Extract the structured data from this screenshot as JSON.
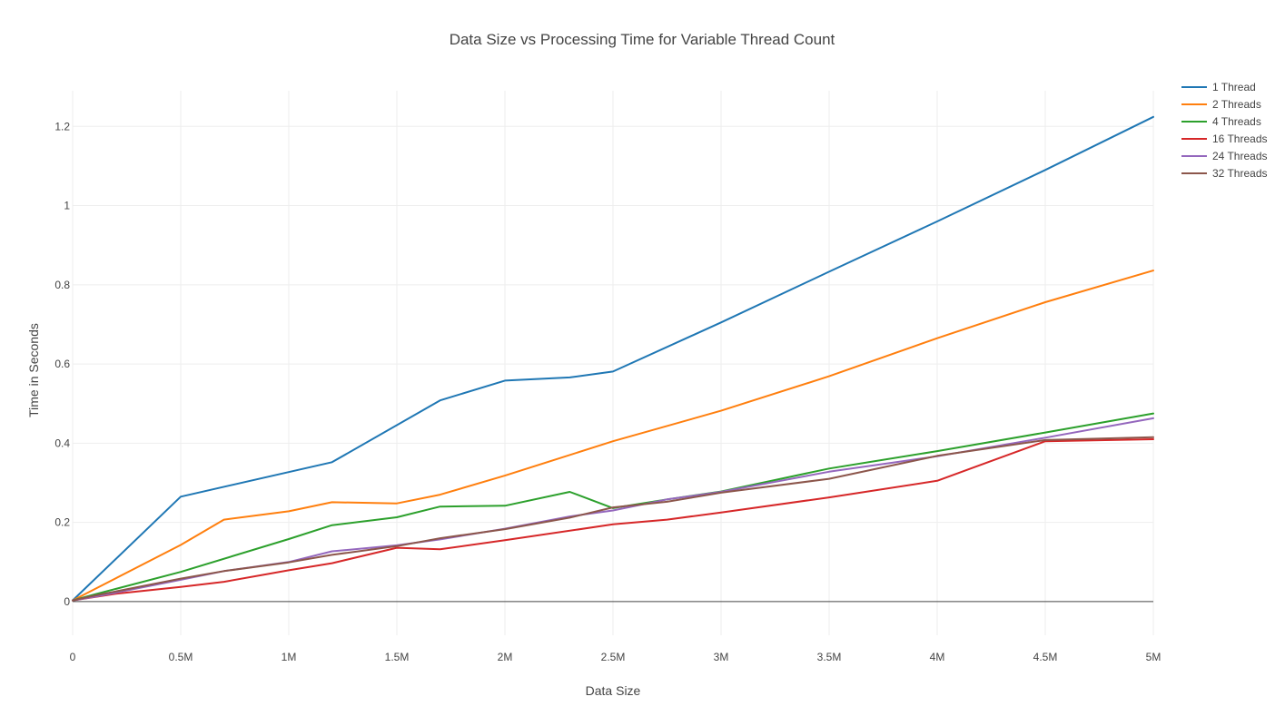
{
  "chart_data": {
    "type": "line",
    "title": "Data Size vs Processing Time for Variable Thread Count",
    "xlabel": "Data Size",
    "ylabel": "Time in Seconds",
    "xlim": [
      0,
      5000000
    ],
    "ylim": [
      -0.085,
      1.29
    ],
    "x_ticks": [
      {
        "value": 0,
        "label": "0"
      },
      {
        "value": 500000,
        "label": "0.5M"
      },
      {
        "value": 1000000,
        "label": "1M"
      },
      {
        "value": 1500000,
        "label": "1.5M"
      },
      {
        "value": 2000000,
        "label": "2M"
      },
      {
        "value": 2500000,
        "label": "2.5M"
      },
      {
        "value": 3000000,
        "label": "3M"
      },
      {
        "value": 3500000,
        "label": "3.5M"
      },
      {
        "value": 4000000,
        "label": "4M"
      },
      {
        "value": 4500000,
        "label": "4.5M"
      },
      {
        "value": 5000000,
        "label": "5M"
      }
    ],
    "y_ticks": [
      {
        "value": 0,
        "label": "0"
      },
      {
        "value": 0.2,
        "label": "0.2"
      },
      {
        "value": 0.4,
        "label": "0.4"
      },
      {
        "value": 0.6,
        "label": "0.6"
      },
      {
        "value": 0.8,
        "label": "0.8"
      },
      {
        "value": 1.0,
        "label": "1"
      },
      {
        "value": 1.2,
        "label": "1.2"
      }
    ],
    "grid": true,
    "legend_position": "top-right",
    "series": [
      {
        "name": "1 Thread",
        "color": "#1f77b4",
        "points": [
          [
            0,
            0.003
          ],
          [
            500000,
            0.265
          ],
          [
            1200000,
            0.352
          ],
          [
            1700000,
            0.508
          ],
          [
            2000000,
            0.558
          ],
          [
            2300000,
            0.566
          ],
          [
            2500000,
            0.581
          ],
          [
            3000000,
            0.705
          ],
          [
            3500000,
            0.833
          ],
          [
            4000000,
            0.96
          ],
          [
            4500000,
            1.09
          ],
          [
            5000000,
            1.224
          ]
        ]
      },
      {
        "name": "2 Threads",
        "color": "#ff7f0e",
        "points": [
          [
            0,
            0.003
          ],
          [
            500000,
            0.143
          ],
          [
            700000,
            0.207
          ],
          [
            1000000,
            0.228
          ],
          [
            1200000,
            0.251
          ],
          [
            1500000,
            0.248
          ],
          [
            1700000,
            0.27
          ],
          [
            2000000,
            0.318
          ],
          [
            2500000,
            0.405
          ],
          [
            3000000,
            0.482
          ],
          [
            3500000,
            0.569
          ],
          [
            4000000,
            0.665
          ],
          [
            4500000,
            0.756
          ],
          [
            5000000,
            0.836
          ]
        ]
      },
      {
        "name": "4 Threads",
        "color": "#2ca02c",
        "points": [
          [
            0,
            0.003
          ],
          [
            100000,
            0.018
          ],
          [
            500000,
            0.075
          ],
          [
            1000000,
            0.158
          ],
          [
            1200000,
            0.193
          ],
          [
            1500000,
            0.213
          ],
          [
            1700000,
            0.24
          ],
          [
            2000000,
            0.242
          ],
          [
            2300000,
            0.277
          ],
          [
            2500000,
            0.236
          ],
          [
            2750000,
            0.258
          ],
          [
            3000000,
            0.278
          ],
          [
            3500000,
            0.336
          ],
          [
            4000000,
            0.38
          ],
          [
            4500000,
            0.427
          ],
          [
            5000000,
            0.475
          ]
        ]
      },
      {
        "name": "16 Threads",
        "color": "#d62728",
        "points": [
          [
            0,
            0.003
          ],
          [
            200000,
            0.02
          ],
          [
            500000,
            0.037
          ],
          [
            700000,
            0.05
          ],
          [
            1000000,
            0.079
          ],
          [
            1200000,
            0.097
          ],
          [
            1500000,
            0.136
          ],
          [
            1700000,
            0.132
          ],
          [
            2000000,
            0.155
          ],
          [
            2500000,
            0.195
          ],
          [
            2750000,
            0.207
          ],
          [
            3000000,
            0.225
          ],
          [
            3500000,
            0.263
          ],
          [
            4000000,
            0.305
          ],
          [
            4500000,
            0.405
          ],
          [
            5000000,
            0.41
          ]
        ]
      },
      {
        "name": "24 Threads",
        "color": "#9467bd",
        "points": [
          [
            0,
            0.003
          ],
          [
            100000,
            0.012
          ],
          [
            500000,
            0.055
          ],
          [
            700000,
            0.077
          ],
          [
            1000000,
            0.1
          ],
          [
            1200000,
            0.127
          ],
          [
            1500000,
            0.142
          ],
          [
            1700000,
            0.157
          ],
          [
            2000000,
            0.184
          ],
          [
            2300000,
            0.215
          ],
          [
            2500000,
            0.23
          ],
          [
            2750000,
            0.258
          ],
          [
            3000000,
            0.277
          ],
          [
            3500000,
            0.328
          ],
          [
            4000000,
            0.367
          ],
          [
            4500000,
            0.414
          ],
          [
            5000000,
            0.463
          ]
        ]
      },
      {
        "name": "32 Threads",
        "color": "#8c564b",
        "points": [
          [
            0,
            0.003
          ],
          [
            100000,
            0.015
          ],
          [
            500000,
            0.058
          ],
          [
            700000,
            0.077
          ],
          [
            1000000,
            0.099
          ],
          [
            1200000,
            0.118
          ],
          [
            1500000,
            0.14
          ],
          [
            1700000,
            0.16
          ],
          [
            2000000,
            0.183
          ],
          [
            2300000,
            0.212
          ],
          [
            2500000,
            0.238
          ],
          [
            2750000,
            0.252
          ],
          [
            3000000,
            0.275
          ],
          [
            3500000,
            0.31
          ],
          [
            4000000,
            0.368
          ],
          [
            4500000,
            0.408
          ],
          [
            5000000,
            0.415
          ]
        ]
      }
    ]
  }
}
